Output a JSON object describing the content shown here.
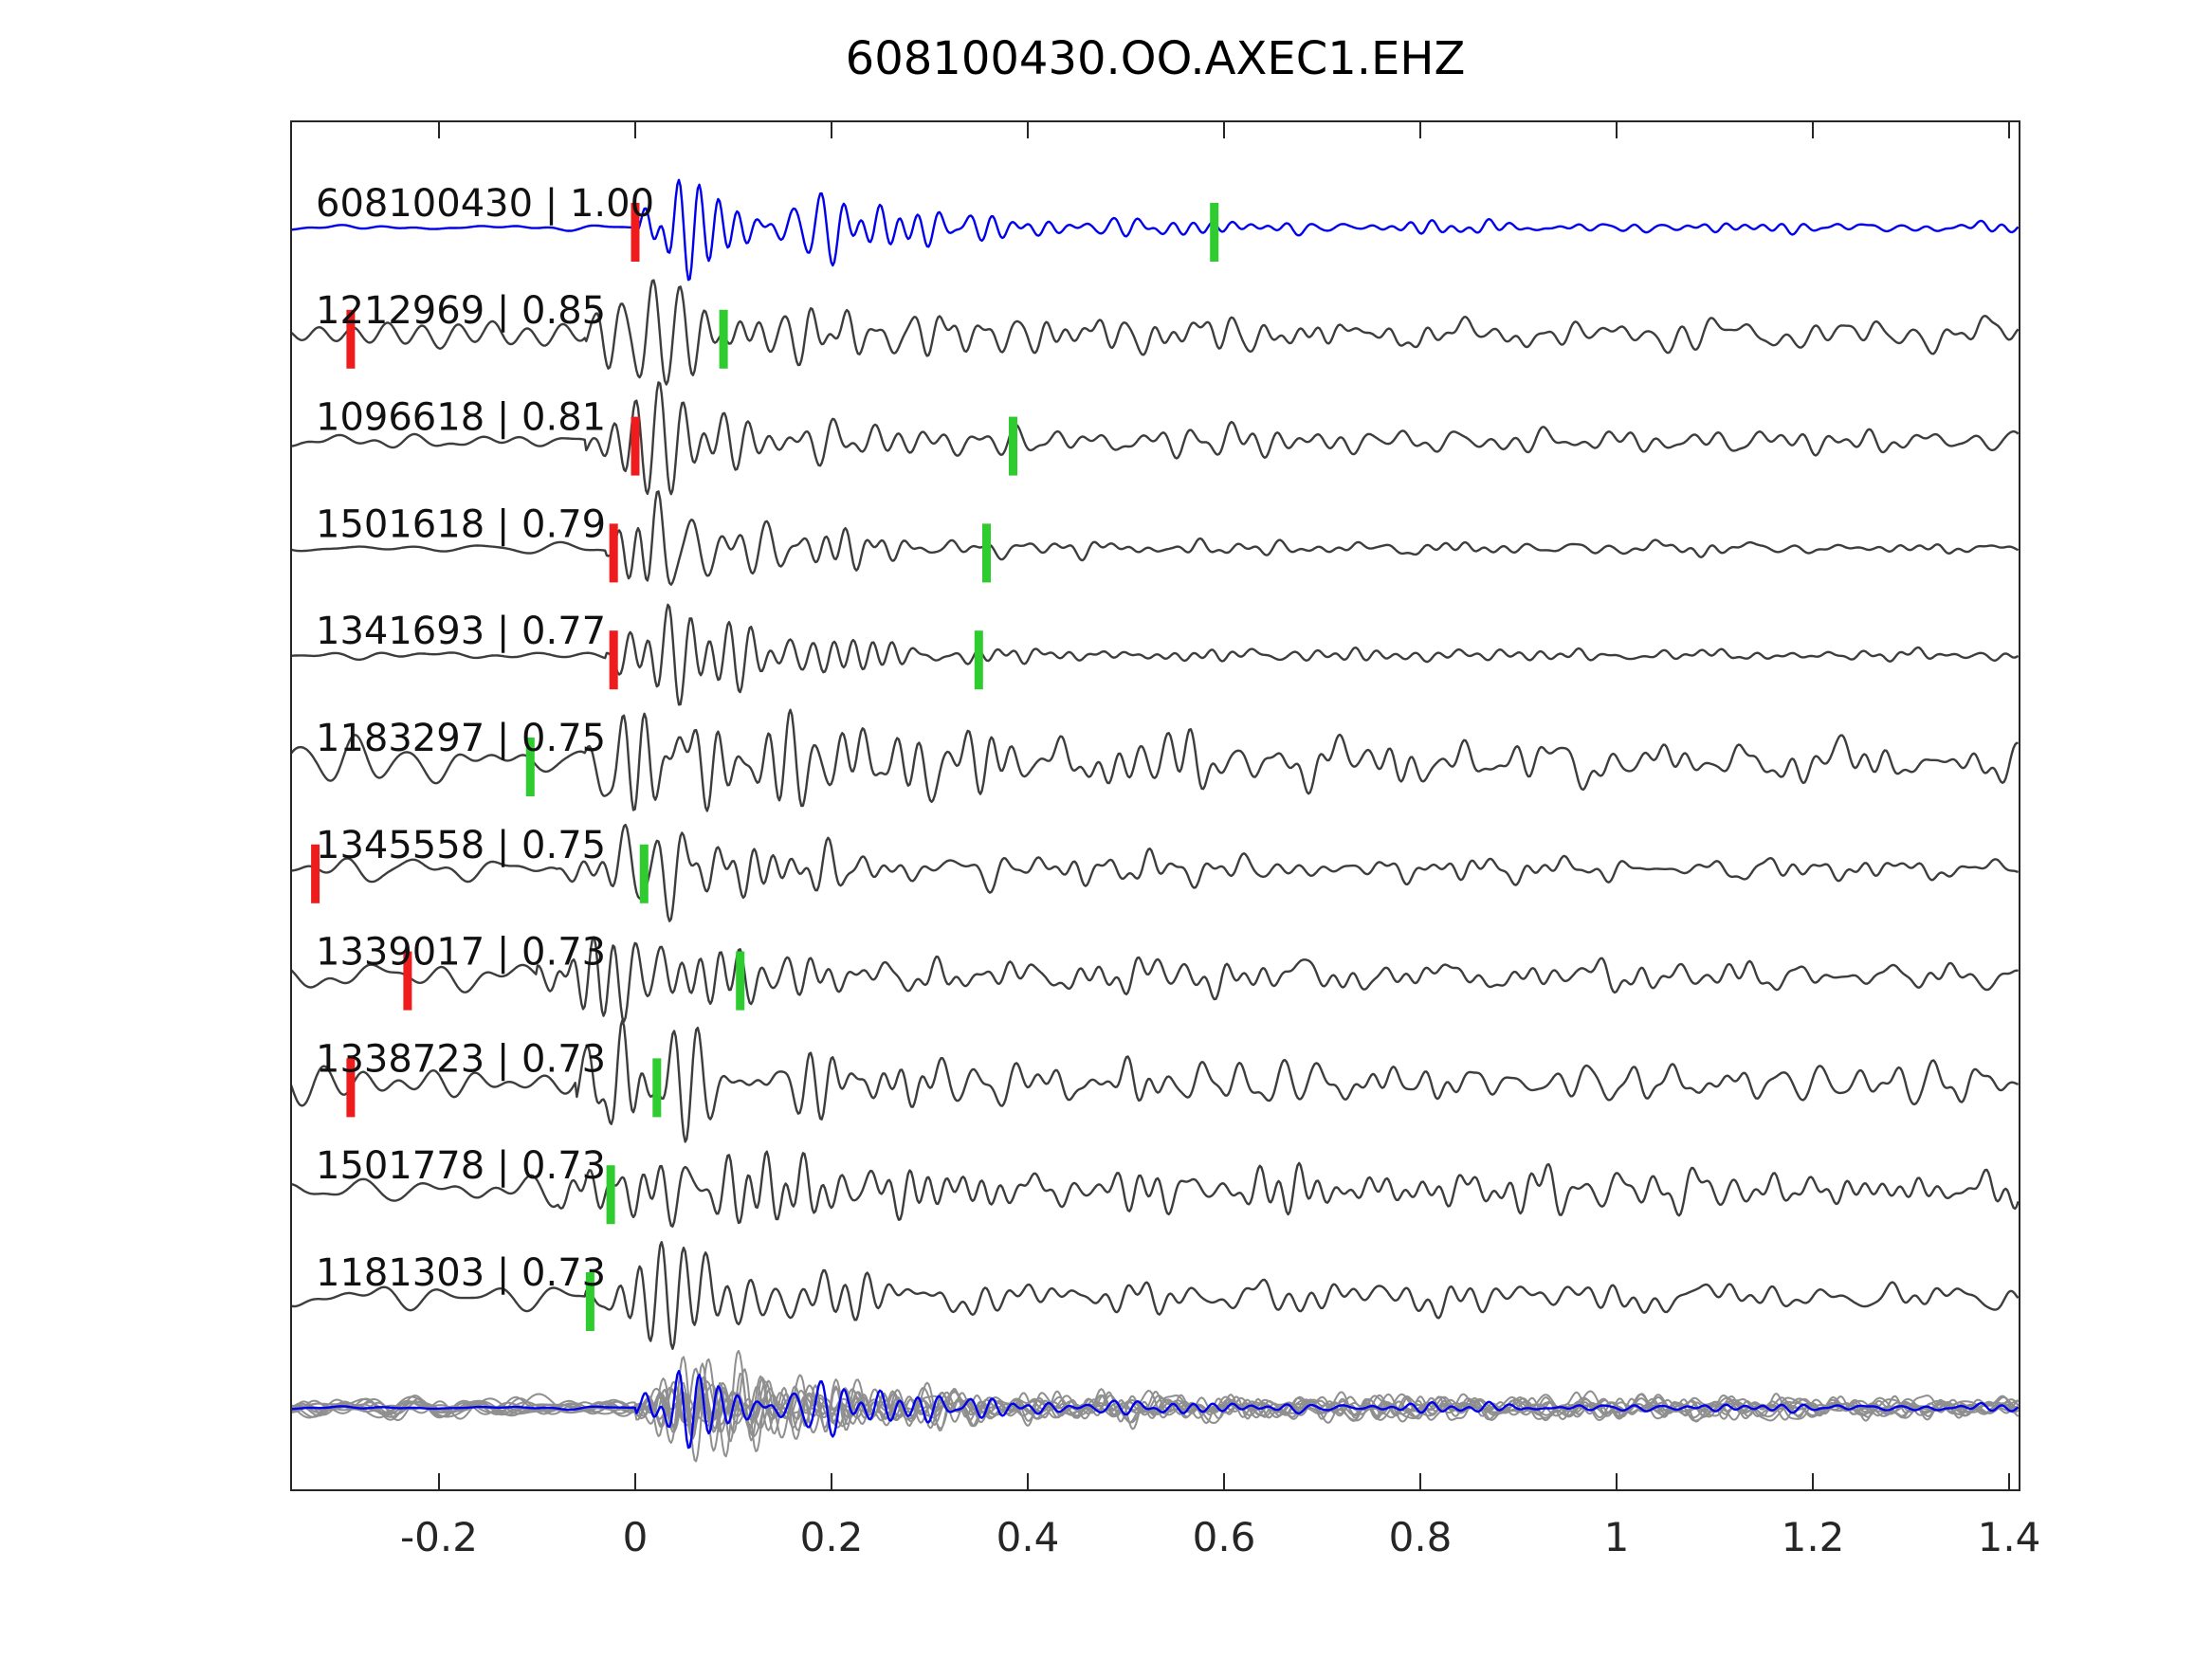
{
  "title": "608100430.OO.AXEC1.EHZ",
  "chart_data": {
    "type": "line",
    "description": "Stacked seismic waveform traces (template matching / cross-correlation detections). Top blue trace is the template; each gray trace is a detection labeled 'id | similarity' with red and green pick markers. Bottom row overlays all gray traces with the blue template.",
    "xlim": [
      -0.351,
      1.411
    ],
    "x_ticks": [
      "-0.2",
      "0",
      "0.2",
      "0.4",
      "0.6",
      "0.8",
      "1",
      "1.2",
      "1.4"
    ],
    "x_tick_values": [
      -0.2,
      0,
      0.2,
      0.4,
      0.6,
      0.8,
      1.0,
      1.2,
      1.4
    ],
    "grid": "off",
    "legend": "none",
    "colors": {
      "template": "#0000ee",
      "trace": "#3d3d3d",
      "overlay": "#8f8f8f",
      "red_pick": "#ee1c1c",
      "green_pick": "#2ecc2e",
      "axis": "#262626",
      "label_text": "#111111"
    },
    "traces": [
      {
        "label": "608100430 | 1.00",
        "id": "608100430",
        "similarity": 1.0,
        "is_template": true,
        "red_pick": 0.0,
        "green_pick": 0.59,
        "render": {
          "onset": 0.0,
          "amp": 60,
          "noise": 0.08,
          "decay": 4.5,
          "coda": 0.13,
          "seed": 101
        }
      },
      {
        "label": "1212969 | 0.85",
        "id": "1212969",
        "similarity": 0.85,
        "is_template": false,
        "red_pick": -0.29,
        "green_pick": 0.09,
        "render": {
          "onset": -0.05,
          "amp": 66,
          "noise": 0.3,
          "decay": 4.0,
          "coda": 0.26,
          "seed": 202
        }
      },
      {
        "label": "1096618 | 0.81",
        "id": "1096618",
        "similarity": 0.81,
        "is_template": false,
        "red_pick": 0.0,
        "green_pick": 0.385,
        "render": {
          "onset": -0.05,
          "amp": 62,
          "noise": 0.22,
          "decay": 3.8,
          "coda": 0.28,
          "seed": 303
        }
      },
      {
        "label": "1501618 | 0.79",
        "id": "1501618",
        "similarity": 0.79,
        "is_template": false,
        "red_pick": -0.022,
        "green_pick": 0.358,
        "render": {
          "onset": -0.03,
          "amp": 52,
          "noise": 0.12,
          "decay": 5.5,
          "coda": 0.16,
          "seed": 404
        }
      },
      {
        "label": "1341693 | 0.77",
        "id": "1341693",
        "similarity": 0.77,
        "is_template": false,
        "red_pick": -0.022,
        "green_pick": 0.35,
        "render": {
          "onset": -0.03,
          "amp": 48,
          "noise": 0.1,
          "decay": 5.5,
          "coda": 0.15,
          "seed": 505
        }
      },
      {
        "label": "1183297 | 0.75",
        "id": "1183297",
        "similarity": 0.75,
        "is_template": false,
        "red_pick": null,
        "green_pick": -0.107,
        "render": {
          "onset": -0.05,
          "amp": 68,
          "noise": 0.38,
          "decay": 3.5,
          "coda": 0.3,
          "seed": 606
        }
      },
      {
        "label": "1345558 | 0.75",
        "id": "1345558",
        "similarity": 0.75,
        "is_template": false,
        "red_pick": -0.326,
        "green_pick": 0.009,
        "render": {
          "onset": -0.08,
          "amp": 58,
          "noise": 0.35,
          "decay": 4.0,
          "coda": 0.3,
          "seed": 707
        }
      },
      {
        "label": "1339017 | 0.73",
        "id": "1339017",
        "similarity": 0.73,
        "is_template": false,
        "red_pick": -0.232,
        "green_pick": 0.107,
        "render": {
          "onset": -0.1,
          "amp": 52,
          "noise": 0.33,
          "decay": 4.5,
          "coda": 0.3,
          "seed": 808
        }
      },
      {
        "label": "1338723 | 0.73",
        "id": "1338723",
        "similarity": 0.73,
        "is_template": false,
        "red_pick": -0.29,
        "green_pick": 0.022,
        "render": {
          "onset": -0.06,
          "amp": 58,
          "noise": 0.33,
          "decay": 4.2,
          "coda": 0.28,
          "seed": 909
        }
      },
      {
        "label": "1501778 | 0.73",
        "id": "1501778",
        "similarity": 0.73,
        "is_template": false,
        "red_pick": null,
        "green_pick": -0.025,
        "render": {
          "onset": -0.08,
          "amp": 44,
          "noise": 0.4,
          "decay": 3.0,
          "coda": 0.55,
          "seed": 1010
        }
      },
      {
        "label": "1181303 | 0.73",
        "id": "1181303",
        "similarity": 0.73,
        "is_template": false,
        "red_pick": null,
        "green_pick": -0.046,
        "render": {
          "onset": -0.05,
          "amp": 54,
          "noise": 0.3,
          "decay": 4.8,
          "coda": 0.3,
          "seed": 1111
        }
      }
    ],
    "overlay": {
      "description": "All detection traces overlaid in gray, aligned at t=0, with the blue template on top",
      "gray_amp": 42,
      "gray_noise": 0.3,
      "gray_coda": 0.25,
      "template_amp": 46,
      "template_noise": 0.06,
      "template_coda": 0.13
    }
  }
}
